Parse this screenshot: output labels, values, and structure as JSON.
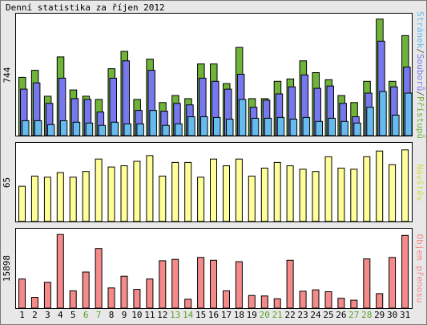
{
  "title": "Denní statistika za říjen 2012",
  "colors": {
    "hits": "#6fb33a",
    "files": "#7777ee",
    "pages": "#66bbee",
    "visits": "#ffff99",
    "volume": "#f58a8a",
    "weekday_label": "#000000",
    "weekend_label": "#5aa02c"
  },
  "chart_data": [
    {
      "type": "bar",
      "categories": [
        "1",
        "2",
        "3",
        "4",
        "5",
        "6",
        "7",
        "8",
        "9",
        "10",
        "11",
        "12",
        "13",
        "14",
        "15",
        "16",
        "17",
        "18",
        "19",
        "20",
        "21",
        "22",
        "23",
        "24",
        "25",
        "26",
        "27",
        "28",
        "29",
        "30",
        "31"
      ],
      "weekend_days": [
        "6",
        "7",
        "13",
        "14",
        "20",
        "21",
        "27",
        "28"
      ],
      "ylim": [
        0,
        744
      ],
      "ymax_label": "744",
      "legend": {
        "separator": "/",
        "position": "right",
        "order": [
          "pages",
          "files",
          "hits"
        ]
      },
      "series": [
        {
          "key": "hits",
          "name": "Přístupů",
          "values": [
            370,
            415,
            250,
            500,
            290,
            250,
            230,
            425,
            535,
            230,
            485,
            210,
            255,
            235,
            455,
            455,
            330,
            560,
            235,
            235,
            345,
            360,
            475,
            400,
            355,
            255,
            210,
            345,
            740,
            345,
            635
          ]
        },
        {
          "key": "files",
          "name": "Souborů",
          "values": [
            295,
            335,
            205,
            365,
            235,
            230,
            150,
            365,
            475,
            160,
            415,
            155,
            205,
            195,
            365,
            345,
            295,
            390,
            180,
            225,
            265,
            310,
            385,
            300,
            315,
            205,
            120,
            270,
            600,
            310,
            435
          ]
        },
        {
          "key": "pages",
          "name": "Stránek",
          "values": [
            95,
            95,
            70,
            95,
            85,
            80,
            65,
            85,
            75,
            75,
            160,
            65,
            75,
            120,
            120,
            115,
            105,
            230,
            110,
            110,
            115,
            105,
            115,
            90,
            110,
            90,
            80,
            180,
            280,
            130,
            270
          ]
        }
      ]
    },
    {
      "type": "bar",
      "categories": [
        "1",
        "2",
        "3",
        "4",
        "5",
        "6",
        "7",
        "8",
        "9",
        "10",
        "11",
        "12",
        "13",
        "14",
        "15",
        "16",
        "17",
        "18",
        "19",
        "20",
        "21",
        "22",
        "23",
        "24",
        "25",
        "26",
        "27",
        "28",
        "29",
        "30",
        "31"
      ],
      "ylim": [
        0,
        65
      ],
      "ymax_label": "65",
      "series": [
        {
          "key": "visits",
          "name": "Návštěv",
          "values": [
            31,
            40,
            39,
            43,
            39,
            44,
            55,
            48,
            49,
            53,
            58,
            40,
            52,
            52,
            39,
            55,
            49,
            55,
            40,
            47,
            52,
            49,
            46,
            44,
            57,
            47,
            46,
            57,
            62,
            50,
            63
          ]
        }
      ]
    },
    {
      "type": "bar",
      "categories": [
        "1",
        "2",
        "3",
        "4",
        "5",
        "6",
        "7",
        "8",
        "9",
        "10",
        "11",
        "12",
        "13",
        "14",
        "15",
        "16",
        "17",
        "18",
        "19",
        "20",
        "21",
        "22",
        "23",
        "24",
        "25",
        "26",
        "27",
        "28",
        "29",
        "30",
        "31"
      ],
      "ylim": [
        0,
        15898
      ],
      "ymax_label": "15898",
      "series": [
        {
          "key": "volume",
          "name": "Objem přenosu",
          "values": [
            6200,
            2300,
            5500,
            15700,
            3700,
            7700,
            12700,
            4300,
            6800,
            4000,
            6200,
            10100,
            10400,
            1900,
            10800,
            10200,
            3700,
            9900,
            2700,
            2600,
            2000,
            10200,
            3600,
            3900,
            3500,
            2100,
            1700,
            10500,
            3100,
            10800,
            15500
          ]
        }
      ]
    }
  ]
}
